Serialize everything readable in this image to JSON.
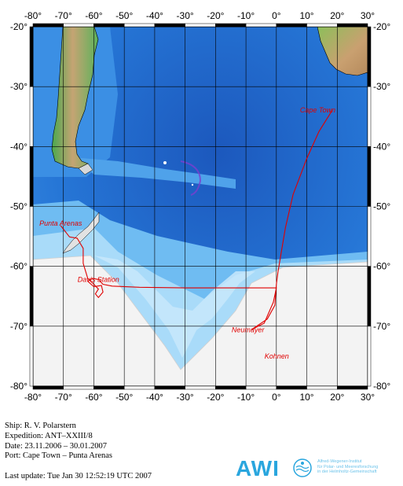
{
  "map": {
    "lon_ticks": [
      "-80°",
      "-70°",
      "-60°",
      "-50°",
      "-40°",
      "-30°",
      "-20°",
      "-10°",
      "0°",
      "10°",
      "20°",
      "30°"
    ],
    "lat_ticks": [
      "-20°",
      "-30°",
      "-40°",
      "-50°",
      "-60°",
      "-70°",
      "-80°"
    ],
    "lon_range": [
      -80,
      30
    ],
    "lat_range": [
      -80,
      -20
    ],
    "colors": {
      "deep_ocean": "#1f5fc0",
      "mid_ocean": "#2f86e0",
      "shallow_ocean": "#7ec8f5",
      "shelf": "#b4e0fa",
      "land_low": "#3fa34d",
      "land_high": "#c9a070",
      "ice": "#f4f4f4",
      "cruise_track": "#e00000"
    },
    "places": [
      {
        "name": "Cape Town",
        "lon": 18.4,
        "lat": -33.9
      },
      {
        "name": "Punta Arenas",
        "lon": -70.9,
        "lat": -53.2
      },
      {
        "name": "Davis Station",
        "lon": -58.5,
        "lat": -62.2
      },
      {
        "name": "Neumayer",
        "lon": -8.3,
        "lat": -70.6
      },
      {
        "name": "Kohnen",
        "lon": 0.1,
        "lat": -75.0
      }
    ],
    "track": [
      [
        18.4,
        -33.9
      ],
      [
        14.0,
        -37.5
      ],
      [
        10.0,
        -42.0
      ],
      [
        5.5,
        -48.0
      ],
      [
        3.0,
        -53.5
      ],
      [
        1.5,
        -58.0
      ],
      [
        0.5,
        -61.0
      ],
      [
        0.0,
        -63.0
      ],
      [
        -0.5,
        -66.5
      ],
      [
        -3.0,
        -68.8
      ],
      [
        -8.3,
        -70.6
      ],
      [
        -4.0,
        -69.5
      ],
      [
        -1.0,
        -66.0
      ],
      [
        0.0,
        -63.6
      ],
      [
        -15.0,
        -63.6
      ],
      [
        -30.0,
        -63.6
      ],
      [
        -45.0,
        -63.5
      ],
      [
        -54.0,
        -63.3
      ],
      [
        -57.0,
        -63.0
      ],
      [
        -58.5,
        -62.2
      ],
      [
        -60.5,
        -62.0
      ],
      [
        -62.0,
        -62.5
      ],
      [
        -60.0,
        -63.4
      ],
      [
        -57.5,
        -63.2
      ],
      [
        -57.0,
        -64.3
      ],
      [
        -58.5,
        -65.2
      ],
      [
        -59.5,
        -64.6
      ],
      [
        -58.5,
        -63.8
      ],
      [
        -60.0,
        -63.0
      ],
      [
        -62.0,
        -62.0
      ],
      [
        -63.5,
        -59.5
      ],
      [
        -63.5,
        -57.0
      ],
      [
        -65.5,
        -55.3
      ],
      [
        -68.0,
        -55.1
      ],
      [
        -70.9,
        -53.2
      ]
    ]
  },
  "info": {
    "ship": "Ship: R. V. Polarstern",
    "expedition": "Expedition: ANT–XXIII/8",
    "date": "Date: 23.11.2006 – 30.01.2007",
    "port": "Port: Cape Town – Punta Arenas",
    "last_update": "Last update: Tue Jan 30 12:52:19 UTC 2007"
  },
  "logo": {
    "name": "AWI",
    "subtitle": "Alfred-Wegener-Institut\nfür Polar- und Meeresforschung\nin der Helmholtz-Gemeinschaft"
  }
}
